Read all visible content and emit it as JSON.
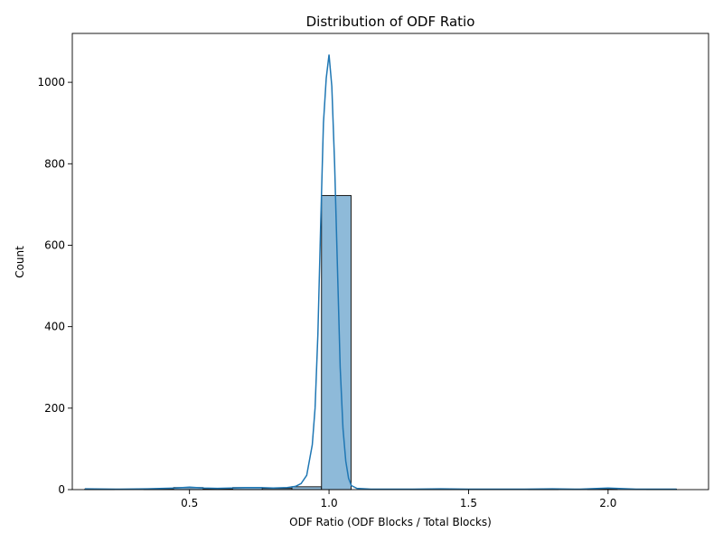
{
  "chart_data": {
    "type": "histogram",
    "title": "Distribution of ODF Ratio",
    "xlabel": "ODF Ratio (ODF Blocks / Total Blocks)",
    "ylabel": "Count",
    "xlim": [
      0.08,
      2.36
    ],
    "ylim": [
      0,
      1120
    ],
    "xticks": [
      0.5,
      1.0,
      1.5,
      2.0
    ],
    "xtick_labels": [
      "0.5",
      "1.0",
      "1.5",
      "2.0"
    ],
    "yticks": [
      0,
      200,
      400,
      600,
      800,
      1000
    ],
    "ytick_labels": [
      "0",
      "200",
      "400",
      "600",
      "800",
      "1000"
    ],
    "grid": false,
    "bar_color": "#8ebad9",
    "bar_edge_color": "#1a1a1a",
    "line_color": "#1f77b4",
    "bins": [
      {
        "x0": 0.125,
        "x1": 0.231,
        "count": 1
      },
      {
        "x0": 0.231,
        "x1": 0.337,
        "count": 0
      },
      {
        "x0": 0.337,
        "x1": 0.443,
        "count": 1
      },
      {
        "x0": 0.443,
        "x1": 0.549,
        "count": 5
      },
      {
        "x0": 0.549,
        "x1": 0.655,
        "count": 2
      },
      {
        "x0": 0.655,
        "x1": 0.761,
        "count": 5
      },
      {
        "x0": 0.761,
        "x1": 0.867,
        "count": 3
      },
      {
        "x0": 0.867,
        "x1": 0.973,
        "count": 7
      },
      {
        "x0": 0.973,
        "x1": 1.079,
        "count": 722
      },
      {
        "x0": 1.079,
        "x1": 1.185,
        "count": 0
      },
      {
        "x0": 1.185,
        "x1": 1.291,
        "count": 0
      },
      {
        "x0": 1.291,
        "x1": 1.397,
        "count": 1
      },
      {
        "x0": 1.397,
        "x1": 1.503,
        "count": 1
      },
      {
        "x0": 1.503,
        "x1": 1.609,
        "count": 0
      },
      {
        "x0": 1.609,
        "x1": 1.715,
        "count": 0
      },
      {
        "x0": 1.715,
        "x1": 1.821,
        "count": 1
      },
      {
        "x0": 1.821,
        "x1": 1.927,
        "count": 0
      },
      {
        "x0": 1.927,
        "x1": 2.033,
        "count": 2
      },
      {
        "x0": 2.033,
        "x1": 2.139,
        "count": 0
      },
      {
        "x0": 2.139,
        "x1": 2.245,
        "count": 1
      }
    ],
    "kde": {
      "x": [
        0.125,
        0.25,
        0.35,
        0.45,
        0.5,
        0.55,
        0.6,
        0.65,
        0.7,
        0.75,
        0.8,
        0.85,
        0.88,
        0.9,
        0.92,
        0.94,
        0.95,
        0.96,
        0.97,
        0.98,
        0.99,
        1.0,
        1.01,
        1.02,
        1.03,
        1.04,
        1.05,
        1.06,
        1.07,
        1.08,
        1.1,
        1.15,
        1.2,
        1.3,
        1.4,
        1.5,
        1.6,
        1.7,
        1.8,
        1.9,
        2.0,
        2.1,
        2.245
      ],
      "y": [
        2,
        1,
        2,
        4,
        6,
        4,
        3,
        4,
        5,
        5,
        4,
        5,
        8,
        15,
        35,
        110,
        200,
        380,
        650,
        900,
        1010,
        1068,
        990,
        800,
        550,
        300,
        150,
        70,
        28,
        10,
        3,
        1,
        1,
        1,
        2,
        1,
        1,
        1,
        2,
        1,
        4,
        1,
        1
      ]
    }
  }
}
